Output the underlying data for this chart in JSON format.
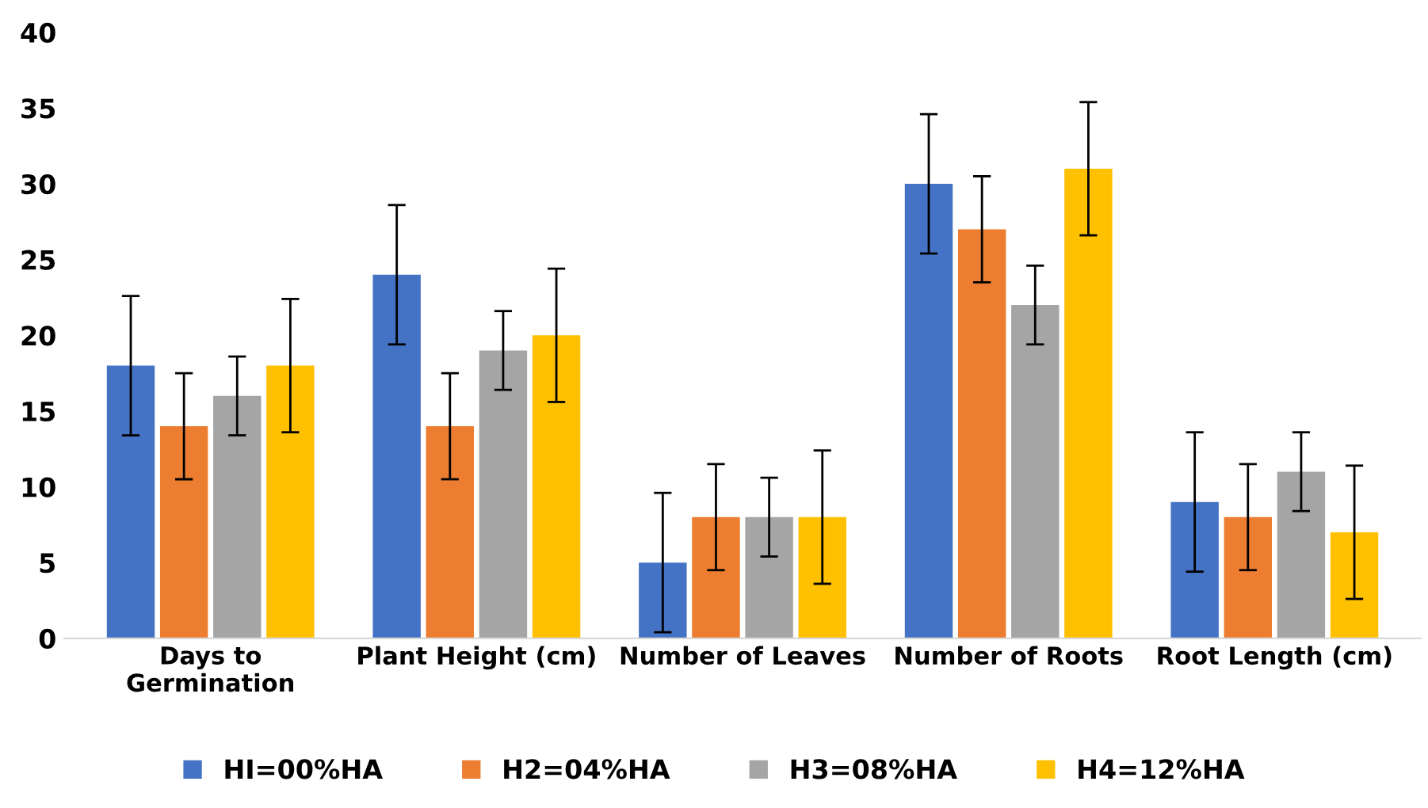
{
  "chart_data": {
    "type": "bar",
    "categories": [
      "Days to\nGermination",
      "Plant Height (cm)",
      "Number of Leaves",
      "Number of Roots",
      "Root Length (cm)"
    ],
    "series": [
      {
        "name": "HI=00%HA",
        "color": "#4472c4",
        "values": [
          18,
          24,
          5,
          30,
          9
        ],
        "errors": [
          4.6,
          4.6,
          4.6,
          4.6,
          4.6
        ]
      },
      {
        "name": "H2=04%HA",
        "color": "#ed7d31",
        "values": [
          14,
          14,
          8,
          27,
          8
        ],
        "errors": [
          3.5,
          3.5,
          3.5,
          3.5,
          3.5
        ]
      },
      {
        "name": "H3=08%HA",
        "color": "#a5a5a5",
        "values": [
          16,
          19,
          8,
          22,
          11
        ],
        "errors": [
          2.6,
          2.6,
          2.6,
          2.6,
          2.6
        ]
      },
      {
        "name": "H4=12%HA",
        "color": "#ffc000",
        "values": [
          18,
          20,
          8,
          31,
          7
        ],
        "errors": [
          4.4,
          4.4,
          4.4,
          4.4,
          4.4
        ]
      }
    ],
    "ylim": [
      0,
      40
    ],
    "yticks": [
      0,
      5,
      10,
      15,
      20,
      25,
      30,
      35,
      40
    ],
    "grid": false,
    "legend": "bottom"
  }
}
